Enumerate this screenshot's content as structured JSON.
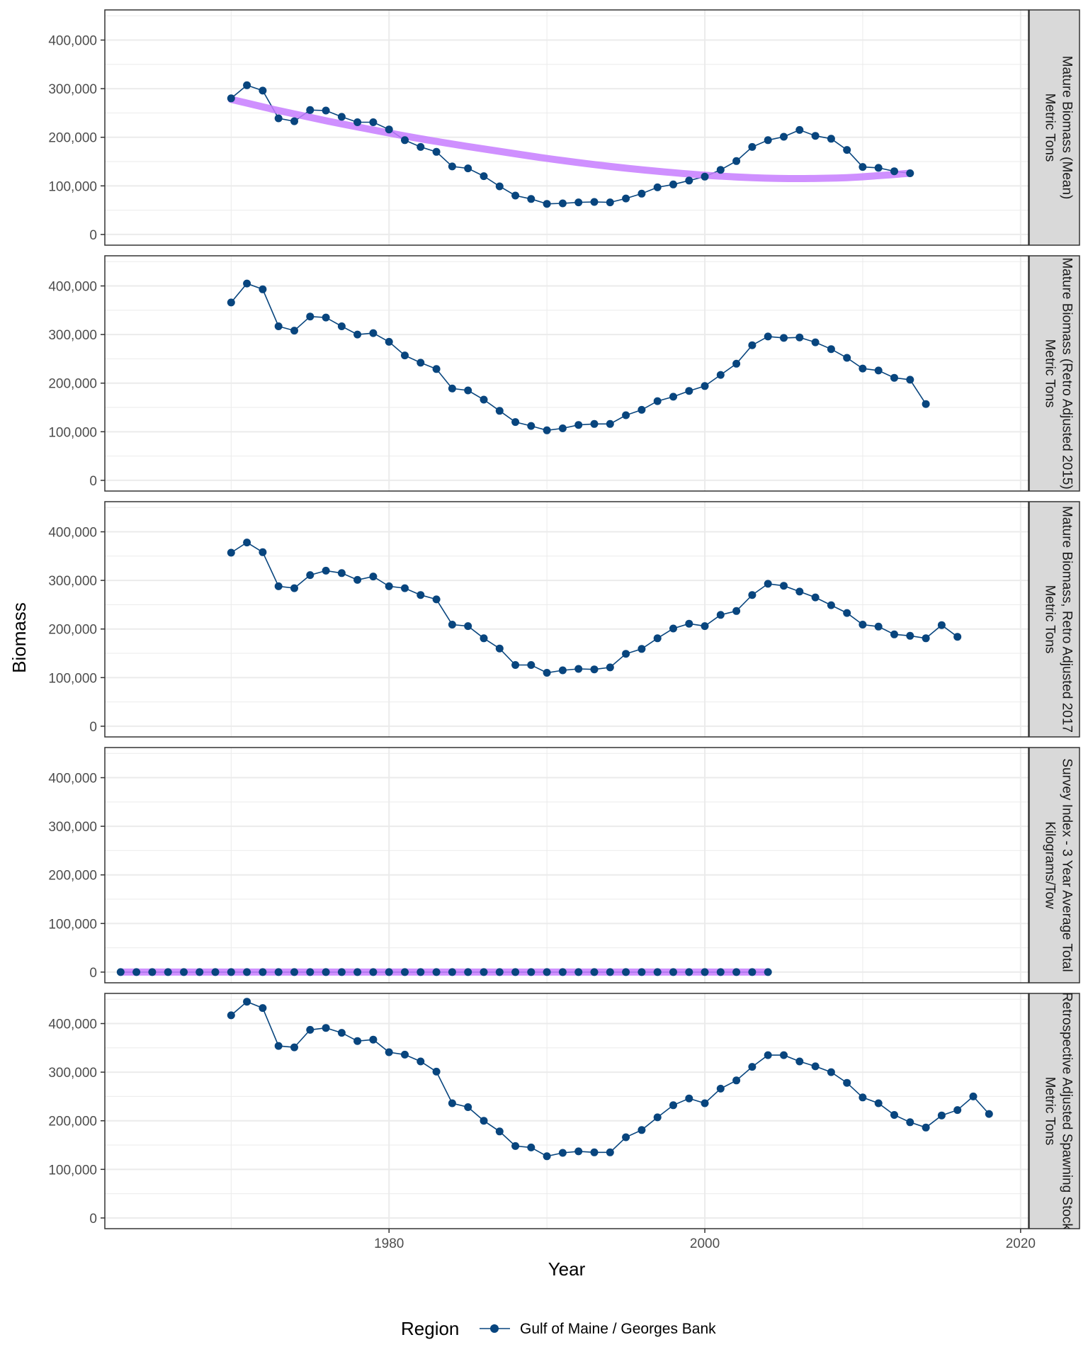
{
  "chart_data": {
    "type": "line",
    "xlabel": "Year",
    "ylabel": "Biomass",
    "xlim": [
      1962,
      2020.5
    ],
    "ylim": [
      -22000,
      462000
    ],
    "x_ticks": [
      1980,
      2000,
      2020
    ],
    "x_tick_labels": [
      "1980",
      "2000",
      "2020"
    ],
    "y_ticks": [
      0,
      100000,
      200000,
      300000,
      400000
    ],
    "y_tick_labels": [
      "0",
      "100,000",
      "200,000",
      "300,000",
      "400,000"
    ],
    "grid": true,
    "legend": {
      "position": "bottom",
      "title": "Region",
      "entries": [
        "Gulf of Maine / Georges Bank"
      ]
    },
    "colors": {
      "series": "#08457e",
      "trend": "#c77cff",
      "strip_fill": "#d9d9d9",
      "grid": "#ebebeb"
    },
    "panels": [
      {
        "strip": "Mature Biomass (Mean)",
        "strip_line2": "Metric Tons",
        "series": {
          "name": "Gulf of Maine / Georges Bank",
          "x": [
            1970,
            1971,
            1972,
            1973,
            1974,
            1975,
            1976,
            1977,
            1978,
            1979,
            1980,
            1981,
            1982,
            1983,
            1984,
            1985,
            1986,
            1987,
            1988,
            1989,
            1990,
            1991,
            1992,
            1993,
            1994,
            1995,
            1996,
            1997,
            1998,
            1999,
            2000,
            2001,
            2002,
            2003,
            2004,
            2005,
            2006,
            2007,
            2008,
            2009,
            2010,
            2011,
            2012,
            2013
          ],
          "y": [
            280000,
            307000,
            296000,
            239000,
            233000,
            256000,
            255000,
            242000,
            231000,
            231000,
            216000,
            194000,
            180000,
            170000,
            140000,
            136000,
            120000,
            99000,
            80000,
            73000,
            63000,
            64000,
            66000,
            67000,
            66000,
            74000,
            84000,
            97000,
            103000,
            111000,
            119000,
            133000,
            151000,
            180000,
            194000,
            201000,
            215000,
            203000,
            197000,
            174000,
            139000,
            137000,
            130000,
            126000
          ]
        },
        "trend": {
          "x": [
            1970,
            1973,
            1976,
            1979,
            1982,
            1985,
            1988,
            1991,
            1994,
            1997,
            2000,
            2003,
            2006,
            2009,
            2011,
            2013
          ],
          "y": [
            278000,
            255000,
            234000,
            215000,
            197000,
            181000,
            166000,
            152000,
            140000,
            130000,
            122000,
            117000,
            115000,
            117000,
            121000,
            126000
          ]
        }
      },
      {
        "strip": "Mature Biomass (Retro Adjusted 2015)",
        "strip_line2": "Metric Tons",
        "series": {
          "name": "Gulf of Maine / Georges Bank",
          "x": [
            1970,
            1971,
            1972,
            1973,
            1974,
            1975,
            1976,
            1977,
            1978,
            1979,
            1980,
            1981,
            1982,
            1983,
            1984,
            1985,
            1986,
            1987,
            1988,
            1989,
            1990,
            1991,
            1992,
            1993,
            1994,
            1995,
            1996,
            1997,
            1998,
            1999,
            2000,
            2001,
            2002,
            2003,
            2004,
            2005,
            2006,
            2007,
            2008,
            2009,
            2010,
            2011,
            2012,
            2013,
            2014
          ],
          "y": [
            366000,
            405000,
            393000,
            317000,
            308000,
            337000,
            335000,
            317000,
            300000,
            303000,
            285000,
            257000,
            242000,
            229000,
            189000,
            185000,
            166000,
            143000,
            120000,
            112000,
            103000,
            107000,
            114000,
            116000,
            116000,
            134000,
            145000,
            163000,
            172000,
            184000,
            194000,
            217000,
            240000,
            278000,
            296000,
            293000,
            294000,
            284000,
            270000,
            252000,
            230000,
            226000,
            211000,
            207000,
            157000
          ]
        }
      },
      {
        "strip": "Mature Biomass, Retro Adjusted 2017",
        "strip_line2": "Metric Tons",
        "series": {
          "name": "Gulf of Maine / Georges Bank",
          "x": [
            1970,
            1971,
            1972,
            1973,
            1974,
            1975,
            1976,
            1977,
            1978,
            1979,
            1980,
            1981,
            1982,
            1983,
            1984,
            1985,
            1986,
            1987,
            1988,
            1989,
            1990,
            1991,
            1992,
            1993,
            1994,
            1995,
            1996,
            1997,
            1998,
            1999,
            2000,
            2001,
            2002,
            2003,
            2004,
            2005,
            2006,
            2007,
            2008,
            2009,
            2010,
            2011,
            2012,
            2013,
            2014,
            2015,
            2016
          ],
          "y": [
            357000,
            378000,
            358000,
            288000,
            284000,
            311000,
            320000,
            315000,
            301000,
            308000,
            288000,
            284000,
            270000,
            261000,
            209000,
            206000,
            181000,
            160000,
            126000,
            126000,
            110000,
            115000,
            118000,
            117000,
            121000,
            149000,
            159000,
            181000,
            201000,
            211000,
            206000,
            229000,
            237000,
            270000,
            293000,
            289000,
            277000,
            265000,
            249000,
            233000,
            209000,
            205000,
            189000,
            186000,
            181000,
            208000,
            184000
          ]
        }
      },
      {
        "strip": "Survey Index - 3 Year Average Total",
        "strip_line2": "Kilograms/Tow",
        "series": {
          "name": "Gulf of Maine / Georges Bank",
          "x": [
            1963,
            1964,
            1965,
            1966,
            1967,
            1968,
            1969,
            1970,
            1971,
            1972,
            1973,
            1974,
            1975,
            1976,
            1977,
            1978,
            1979,
            1980,
            1981,
            1982,
            1983,
            1984,
            1985,
            1986,
            1987,
            1988,
            1989,
            1990,
            1991,
            1992,
            1993,
            1994,
            1995,
            1996,
            1997,
            1998,
            1999,
            2000,
            2001,
            2002,
            2003,
            2004
          ],
          "y": [
            0,
            0,
            0,
            0,
            0,
            0,
            0,
            0,
            0,
            0,
            0,
            0,
            0,
            0,
            0,
            0,
            0,
            0,
            0,
            0,
            0,
            0,
            0,
            0,
            0,
            0,
            0,
            0,
            0,
            0,
            0,
            0,
            0,
            0,
            0,
            0,
            0,
            0,
            0,
            0,
            0,
            0
          ]
        },
        "trend": {
          "x": [
            1963,
            2004
          ],
          "y": [
            0,
            0
          ]
        }
      },
      {
        "strip": "Retrospective Adjusted Spawning Stock",
        "strip_line2": "Metric Tons",
        "series": {
          "name": "Gulf of Maine / Georges Bank",
          "x": [
            1970,
            1971,
            1972,
            1973,
            1974,
            1975,
            1976,
            1977,
            1978,
            1979,
            1980,
            1981,
            1982,
            1983,
            1984,
            1985,
            1986,
            1987,
            1988,
            1989,
            1990,
            1991,
            1992,
            1993,
            1994,
            1995,
            1996,
            1997,
            1998,
            1999,
            2000,
            2001,
            2002,
            2003,
            2004,
            2005,
            2006,
            2007,
            2008,
            2009,
            2010,
            2011,
            2012,
            2013,
            2014,
            2015,
            2016,
            2017,
            2018
          ],
          "y": [
            417000,
            445000,
            432000,
            354000,
            351000,
            387000,
            391000,
            381000,
            364000,
            367000,
            341000,
            336000,
            322000,
            301000,
            236000,
            228000,
            200000,
            178000,
            148000,
            145000,
            127000,
            134000,
            137000,
            135000,
            135000,
            166000,
            181000,
            207000,
            232000,
            246000,
            236000,
            266000,
            283000,
            311000,
            335000,
            335000,
            322000,
            312000,
            300000,
            278000,
            248000,
            236000,
            212000,
            197000,
            186000,
            211000,
            222000,
            250000,
            214000
          ]
        }
      }
    ]
  }
}
